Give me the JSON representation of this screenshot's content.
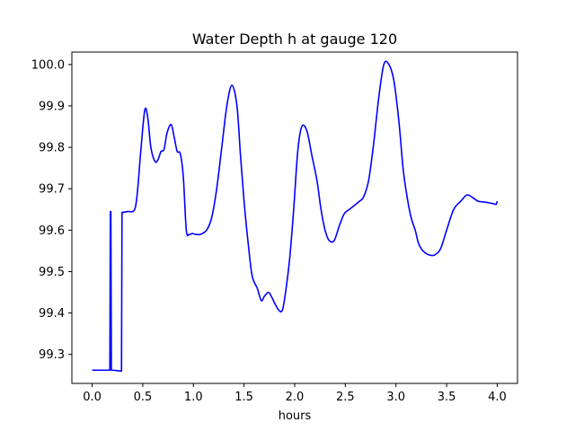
{
  "chart_data": {
    "type": "line",
    "title": "Water Depth h at gauge 120",
    "xlabel": "hours",
    "ylabel": "",
    "xlim": [
      -0.2,
      4.2
    ],
    "ylim": [
      99.23,
      100.03
    ],
    "xticks": [
      0.0,
      0.5,
      1.0,
      1.5,
      2.0,
      2.5,
      3.0,
      3.5,
      4.0
    ],
    "xtick_labels": [
      "0.0",
      "0.5",
      "1.0",
      "1.5",
      "2.0",
      "2.5",
      "3.0",
      "3.5",
      "4.0"
    ],
    "yticks": [
      99.3,
      99.4,
      99.5,
      99.6,
      99.7,
      99.8,
      99.9,
      100.0
    ],
    "ytick_labels": [
      "99.3",
      "99.4",
      "99.5",
      "99.6",
      "99.7",
      "99.8",
      "99.9",
      "100.0"
    ],
    "grid": false,
    "line_color": "#0000ff",
    "series": [
      {
        "x": [
          0.0,
          0.17,
          0.175,
          0.18,
          0.185,
          0.19,
          0.195,
          0.29,
          0.295,
          0.35,
          0.42,
          0.45,
          0.48,
          0.52,
          0.55,
          0.58,
          0.62,
          0.65,
          0.68,
          0.71,
          0.74,
          0.78,
          0.81,
          0.84,
          0.87,
          0.9,
          0.93,
          0.96,
          0.99,
          1.02,
          1.07,
          1.13,
          1.18,
          1.23,
          1.28,
          1.33,
          1.38,
          1.43,
          1.465,
          1.5,
          1.54,
          1.58,
          1.63,
          1.67,
          1.7,
          1.74,
          1.77,
          1.81,
          1.85,
          1.88,
          1.91,
          1.95,
          1.99,
          2.03,
          2.07,
          2.12,
          2.17,
          2.22,
          2.26,
          2.3,
          2.34,
          2.39,
          2.44,
          2.49,
          2.54,
          2.59,
          2.64,
          2.68,
          2.73,
          2.78,
          2.83,
          2.88,
          2.93,
          2.98,
          3.03,
          3.07,
          3.11,
          3.15,
          3.19,
          3.22,
          3.25,
          3.29,
          3.33,
          3.38,
          3.44,
          3.5,
          3.57,
          3.64,
          3.7,
          3.75,
          3.81,
          3.87,
          3.92,
          3.96,
          3.99,
          4.0
        ],
        "y": [
          99.262,
          99.262,
          99.262,
          99.645,
          99.645,
          99.262,
          99.262,
          99.26,
          99.643,
          99.645,
          99.65,
          99.7,
          99.79,
          99.89,
          99.87,
          99.8,
          99.766,
          99.77,
          99.79,
          99.795,
          99.835,
          99.855,
          99.825,
          99.79,
          99.785,
          99.73,
          99.6,
          99.59,
          99.592,
          99.59,
          99.59,
          99.6,
          99.63,
          99.7,
          99.8,
          99.9,
          99.95,
          99.9,
          99.78,
          99.67,
          99.57,
          99.49,
          99.46,
          99.43,
          99.44,
          99.45,
          99.44,
          99.42,
          99.405,
          99.408,
          99.45,
          99.53,
          99.65,
          99.79,
          99.85,
          99.84,
          99.78,
          99.72,
          99.65,
          99.6,
          99.575,
          99.575,
          99.61,
          99.64,
          99.65,
          99.66,
          99.67,
          99.68,
          99.72,
          99.81,
          99.92,
          100.0,
          100.0,
          99.96,
          99.86,
          99.75,
          99.68,
          99.63,
          99.6,
          99.57,
          99.555,
          99.545,
          99.54,
          99.54,
          99.555,
          99.6,
          99.65,
          99.67,
          99.685,
          99.68,
          99.67,
          99.668,
          99.666,
          99.664,
          99.662,
          99.67
        ]
      }
    ]
  }
}
